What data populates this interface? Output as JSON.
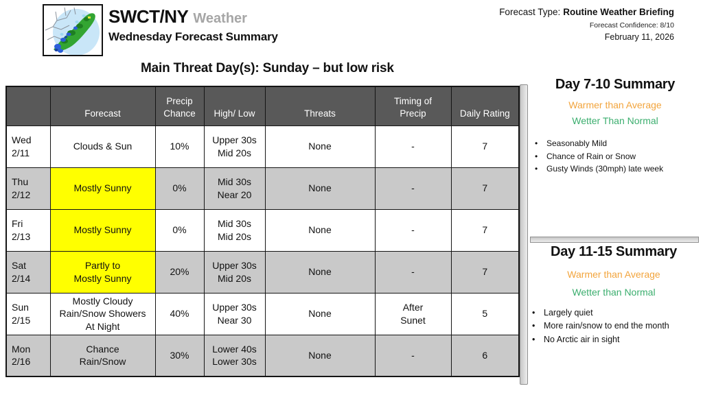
{
  "colors": {
    "table_header_bg": "#595959",
    "table_header_text": "#FFFFFF",
    "row_shade": "#C9C9C9",
    "row_plain": "#FFFFFF",
    "highlight_yellow": "#FFFF00",
    "warmer_orange": "#F2A43C",
    "wetter_green": "#3BAE6E",
    "brand_gray": "#A6A6A6"
  },
  "header": {
    "logo_icon": "northeast-radar-map",
    "title_main": "SWCT/NY",
    "title_accent": "Weather",
    "subtitle": "Wednesday Forecast Summary",
    "forecast_type_label": "Forecast Type:",
    "forecast_type_value": "Routine Weather Briefing",
    "confidence": "Forecast Confidence: 8/10",
    "date": "February 11, 2026"
  },
  "main_threat": "Main Threat Day(s): Sunday – but low risk",
  "table": {
    "columns": [
      "",
      "Forecast",
      "Precip\nChance",
      "High/ Low",
      "Threats",
      "Timing of\nPrecip",
      "Daily Rating"
    ],
    "rows": [
      {
        "day": "Wed\n2/11",
        "forecast": "Clouds & Sun",
        "highlight": false,
        "shaded": false,
        "precip_chance": "10%",
        "high_low": "Upper 30s\nMid 20s",
        "threats": "None",
        "timing": "-",
        "daily_rating": "7"
      },
      {
        "day": "Thu\n2/12",
        "forecast": "Mostly Sunny",
        "highlight": true,
        "shaded": true,
        "precip_chance": "0%",
        "high_low": "Mid 30s\nNear 20",
        "threats": "None",
        "timing": "-",
        "daily_rating": "7"
      },
      {
        "day": "Fri\n2/13",
        "forecast": "Mostly Sunny",
        "highlight": true,
        "shaded": false,
        "precip_chance": "0%",
        "high_low": "Mid 30s\nMid 20s",
        "threats": "None",
        "timing": "-",
        "daily_rating": "7"
      },
      {
        "day": "Sat\n2/14",
        "forecast": "Partly to\nMostly Sunny",
        "highlight": true,
        "shaded": true,
        "precip_chance": "20%",
        "high_low": "Upper 30s\nMid 20s",
        "threats": "None",
        "timing": "-",
        "daily_rating": "7"
      },
      {
        "day": "Sun\n2/15",
        "forecast": "Mostly Cloudy\nRain/Snow Showers\nAt Night",
        "highlight": false,
        "shaded": false,
        "precip_chance": "40%",
        "high_low": "Upper 30s\nNear 30",
        "threats": "None",
        "timing": "After\nSunet",
        "daily_rating": "5"
      },
      {
        "day": "Mon\n2/16",
        "forecast": "Chance\nRain/Snow",
        "highlight": false,
        "shaded": true,
        "precip_chance": "30%",
        "high_low": "Lower 40s\nLower 30s",
        "threats": "None",
        "timing": "-",
        "daily_rating": "6"
      }
    ]
  },
  "day_7_10": {
    "title": "Day 7-10 Summary",
    "warmer": "Warmer than Average",
    "wetter": "Wetter Than Normal",
    "bullets": [
      "Seasonably Mild",
      "Chance of Rain or Snow",
      "Gusty Winds (30mph) late week"
    ]
  },
  "day_11_15": {
    "title": "Day 11-15 Summary",
    "warmer": "Warmer than Average",
    "wetter": "Wetter than Normal",
    "bullets": [
      "Largely quiet",
      "More rain/snow to end the month",
      "No Arctic air in sight"
    ]
  }
}
